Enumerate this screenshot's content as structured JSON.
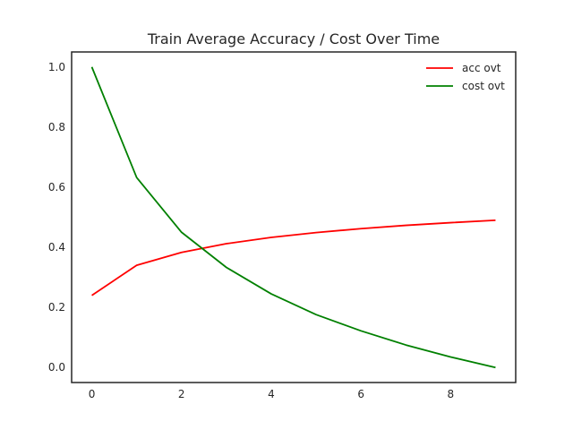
{
  "chart_data": {
    "type": "line",
    "title": "Train Average Accuracy / Cost Over Time",
    "xlabel": "",
    "ylabel": "",
    "x": [
      0,
      1,
      2,
      3,
      4,
      5,
      6,
      7,
      8,
      9
    ],
    "xlim": [
      -0.45,
      9.45
    ],
    "ylim": [
      -0.05,
      1.05
    ],
    "xticks": [
      0,
      2,
      4,
      6,
      8
    ],
    "xtick_labels": [
      "0",
      "2",
      "4",
      "6",
      "8"
    ],
    "yticks": [
      0.0,
      0.2,
      0.4,
      0.6,
      0.8,
      1.0
    ],
    "ytick_labels": [
      "0.0",
      "0.2",
      "0.4",
      "0.6",
      "0.8",
      "1.0"
    ],
    "grid": false,
    "legend_position": "top-right",
    "series": [
      {
        "name": "acc ovt",
        "color": "#ff0000",
        "values": [
          0.24,
          0.34,
          0.383,
          0.412,
          0.433,
          0.449,
          0.462,
          0.473,
          0.482,
          0.49
        ]
      },
      {
        "name": "cost ovt",
        "color": "#008000",
        "values": [
          1.0,
          0.632,
          0.45,
          0.333,
          0.245,
          0.176,
          0.122,
          0.075,
          0.035,
          0.0
        ]
      }
    ]
  }
}
